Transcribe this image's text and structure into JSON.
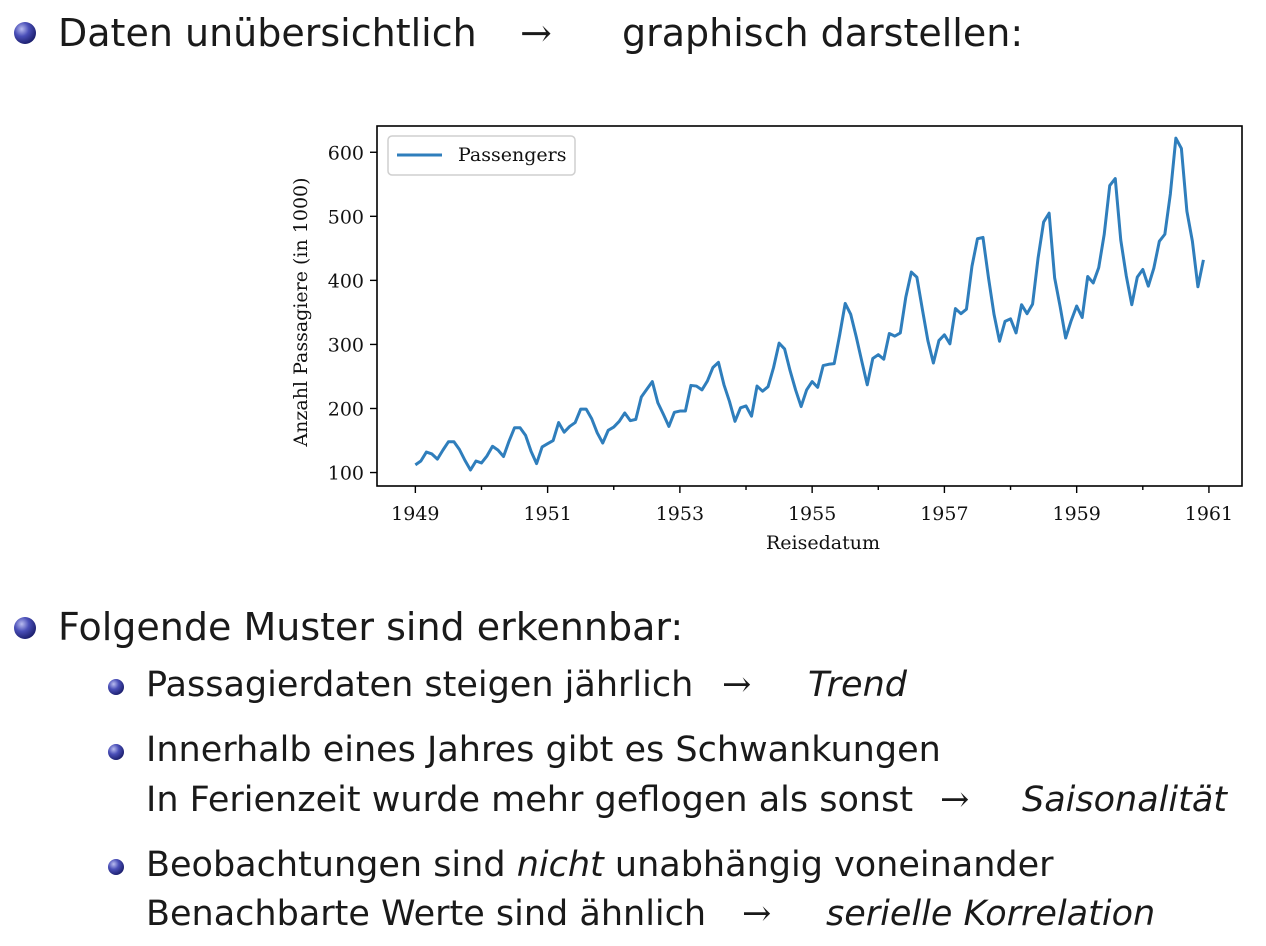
{
  "top_bullet": {
    "text_left": "Daten unübersichtlich",
    "arrow": "→",
    "text_right": "graphisch darstellen:"
  },
  "chart_data": {
    "type": "line",
    "xlabel": "Reisedatum",
    "ylabel": "Anzahl Passagiere (in 1000)",
    "legend": [
      "Passengers"
    ],
    "legend_position": "top-left",
    "x_ticks": [
      "1949",
      "1951",
      "1953",
      "1955",
      "1957",
      "1959",
      "1961"
    ],
    "y_ticks": [
      "100",
      "200",
      "300",
      "400",
      "500",
      "600"
    ],
    "xlim": [
      1948.42,
      1961.5
    ],
    "ylim": [
      79,
      641
    ],
    "grid": false,
    "line_color": "#2f7ebc",
    "x_start": "1949-01",
    "x_frequency": "monthly",
    "series": [
      {
        "name": "Passengers",
        "values": [
          112,
          118,
          132,
          129,
          121,
          135,
          148,
          148,
          136,
          119,
          104,
          118,
          115,
          126,
          141,
          135,
          125,
          149,
          170,
          170,
          158,
          133,
          114,
          140,
          145,
          150,
          178,
          163,
          172,
          178,
          199,
          199,
          184,
          162,
          146,
          166,
          171,
          180,
          193,
          181,
          183,
          218,
          230,
          242,
          209,
          191,
          172,
          194,
          196,
          196,
          236,
          235,
          229,
          243,
          264,
          272,
          237,
          211,
          180,
          201,
          204,
          188,
          235,
          227,
          234,
          264,
          302,
          293,
          259,
          229,
          203,
          229,
          242,
          233,
          267,
          269,
          270,
          315,
          364,
          347,
          312,
          274,
          237,
          278,
          284,
          277,
          317,
          313,
          318,
          374,
          413,
          405,
          355,
          306,
          271,
          306,
          315,
          301,
          356,
          348,
          355,
          422,
          465,
          467,
          404,
          347,
          305,
          336,
          340,
          318,
          362,
          348,
          363,
          435,
          491,
          505,
          404,
          359,
          310,
          337,
          360,
          342,
          406,
          396,
          420,
          472,
          548,
          559,
          463,
          407,
          362,
          405,
          417,
          391,
          419,
          461,
          472,
          535,
          622,
          606,
          508,
          461,
          390,
          432
        ]
      }
    ]
  },
  "patterns": {
    "heading": "Folgende Muster sind erkennbar:",
    "items": [
      {
        "text": "Passagierdaten steigen jährlich",
        "arrow": "→",
        "term": "Trend"
      },
      {
        "line1": "Innerhalb eines Jahres gibt es Schwankungen",
        "line2": "In Ferienzeit wurde mehr geflogen als sonst",
        "arrow": "→",
        "term": "Saisonalität"
      },
      {
        "line1_a": "Beobachtungen sind",
        "line1_em": "nicht",
        "line1_b": "unabhängig voneinander",
        "line2": "Benachbarte Werte sind ähnlich",
        "arrow": "→",
        "term": "serielle Korrelation"
      }
    ]
  }
}
